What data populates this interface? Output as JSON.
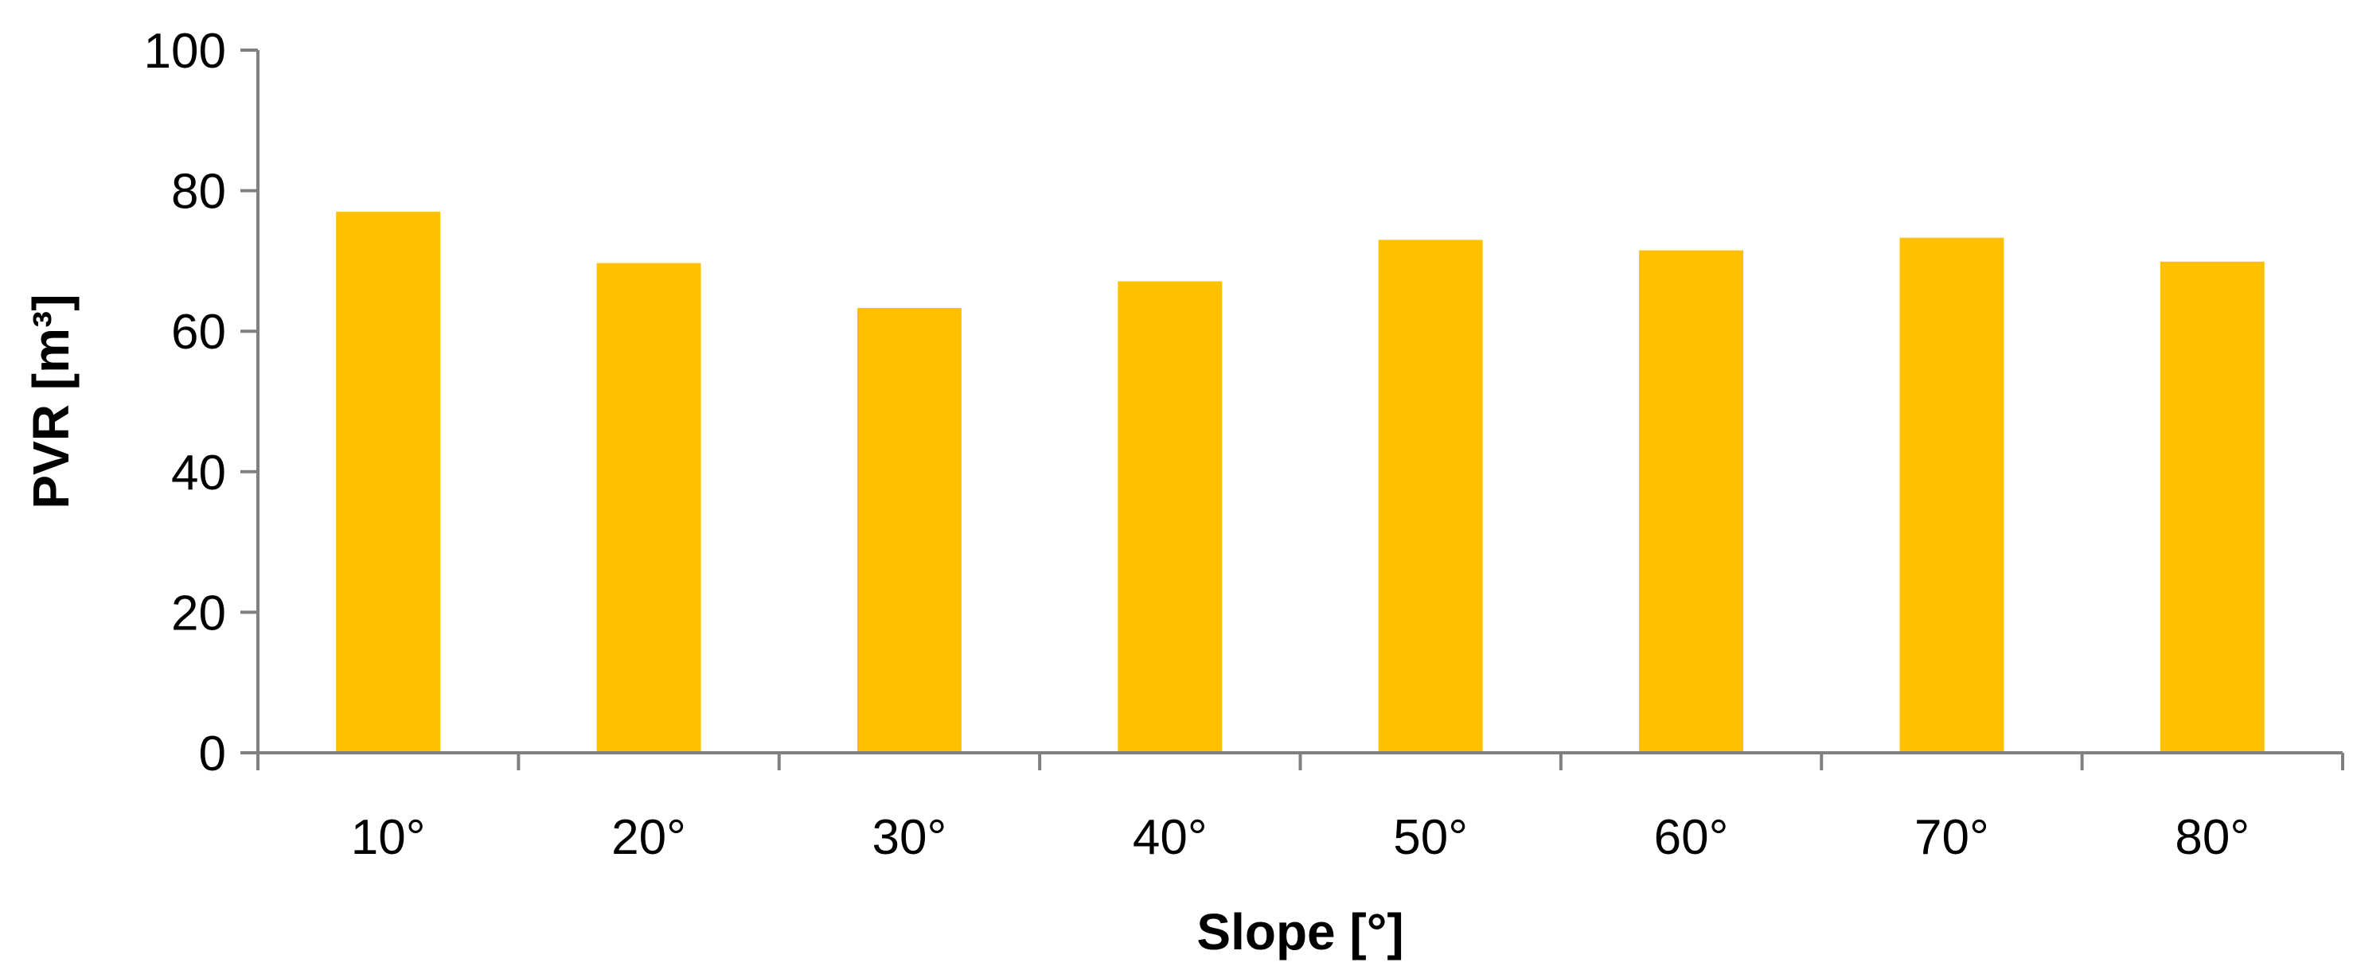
{
  "chart_data": {
    "type": "bar",
    "categories": [
      "10°",
      "20°",
      "30°",
      "40°",
      "50°",
      "60°",
      "70°",
      "80°"
    ],
    "values": [
      77,
      69.7,
      63.3,
      67.1,
      73,
      71.5,
      73.3,
      69.9
    ],
    "title": "",
    "xlabel": "Slope [°]",
    "ylabel": "PVR [m³]",
    "ylim": [
      0,
      100
    ],
    "yticks": [
      "0",
      "20",
      "40",
      "60",
      "80",
      "100"
    ],
    "grid": false,
    "legend": "none",
    "bar_color": "#FFC000",
    "axis_color": "#808080"
  }
}
